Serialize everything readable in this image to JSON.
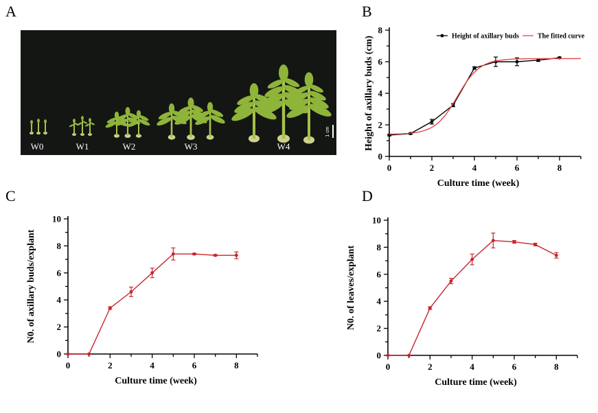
{
  "panel_labels": {
    "a": "A",
    "b": "B",
    "c": "C",
    "d": "D"
  },
  "photo": {
    "week_labels": [
      "W0",
      "W1",
      "W2",
      "W3",
      "W4"
    ],
    "scale_label": "1 cm",
    "plant_color": "#a6c24a",
    "leaf_color": "#8fb43a",
    "background": "#141614"
  },
  "chart_data": [
    {
      "id": "B",
      "type": "line",
      "xlabel": "Culture time (week)",
      "ylabel": "Height of axillary buds (cm)",
      "xlim": [
        0,
        9
      ],
      "ylim": [
        0,
        8
      ],
      "xticks": [
        0,
        2,
        4,
        6,
        8
      ],
      "yticks": [
        0,
        2,
        4,
        6,
        8
      ],
      "legend_position": "top-right",
      "series": [
        {
          "name": "Height of axillary buds",
          "color": "#000000",
          "marker": "circle",
          "x": [
            0,
            1,
            2,
            3,
            4,
            5,
            6,
            7,
            8
          ],
          "y": [
            1.35,
            1.45,
            2.2,
            3.25,
            5.6,
            6.0,
            6.0,
            6.1,
            6.25
          ],
          "err": [
            0.05,
            0.05,
            0.15,
            0.1,
            0.08,
            0.3,
            0.25,
            0.08,
            0.05
          ]
        },
        {
          "name": "The fitted curve",
          "color": "#e0454a",
          "marker": "none",
          "fit": "logistic",
          "x": [
            0,
            9
          ],
          "y": [
            1.4,
            6.2
          ]
        }
      ]
    },
    {
      "id": "C",
      "type": "line",
      "xlabel": "Culture time (week)",
      "ylabel": "N0. of axillary buds/explant",
      "xlim": [
        0,
        9
      ],
      "ylim": [
        0,
        10
      ],
      "xticks": [
        0,
        2,
        4,
        6,
        8
      ],
      "yticks": [
        0,
        2,
        4,
        6,
        8,
        10
      ],
      "series": [
        {
          "color": "#c8242c",
          "marker": "circle",
          "x": [
            0,
            1,
            2,
            3,
            4,
            5,
            6,
            7,
            8
          ],
          "y": [
            0,
            0,
            3.4,
            4.6,
            6.0,
            7.4,
            7.4,
            7.3,
            7.3
          ],
          "err": [
            0,
            0,
            0.1,
            0.35,
            0.35,
            0.45,
            0.05,
            0.05,
            0.25
          ]
        }
      ]
    },
    {
      "id": "D",
      "type": "line",
      "xlabel": "Culture time (week)",
      "ylabel": "N0. of leaves/explant",
      "xlim": [
        0,
        9
      ],
      "ylim": [
        0,
        10
      ],
      "xticks": [
        0,
        2,
        4,
        6,
        8
      ],
      "yticks": [
        0,
        2,
        4,
        6,
        8,
        10
      ],
      "series": [
        {
          "color": "#c8242c",
          "marker": "circle",
          "x": [
            0,
            1,
            2,
            3,
            4,
            5,
            6,
            7,
            8
          ],
          "y": [
            0,
            0,
            3.5,
            5.5,
            7.1,
            8.5,
            8.4,
            8.2,
            7.4
          ],
          "err": [
            0,
            0,
            0.1,
            0.2,
            0.4,
            0.55,
            0.1,
            0.1,
            0.2
          ]
        }
      ]
    }
  ]
}
